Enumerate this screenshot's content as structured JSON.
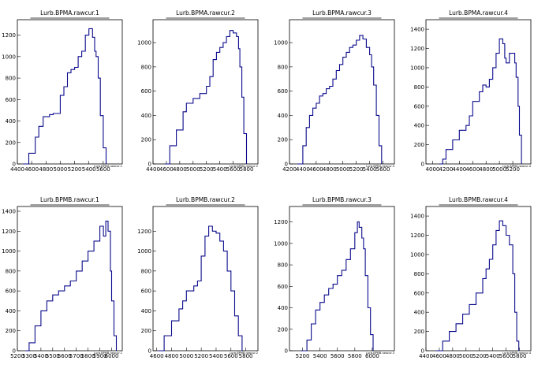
{
  "colors": {
    "histogram_line": "#0a0a8c",
    "frame": "#000000",
    "background": "#ffffff"
  },
  "chart_data": [
    {
      "type": "histogram",
      "title": "Lurb.BPMA.rawcur.1",
      "xlabel": "Lurb.BPMA.rawcur.1",
      "xlim": [
        4400,
        5800
      ],
      "ylim": [
        0,
        1300
      ],
      "xticks": [
        4400,
        4600,
        4800,
        5000,
        5200,
        5400,
        5600
      ],
      "xtick_labels": [
        "4400",
        "4600",
        "4800",
        "5000",
        "5200",
        "5400",
        "5600"
      ],
      "yticks": [
        0,
        200,
        400,
        600,
        800,
        1000,
        1200
      ],
      "ytick_labels": [
        "0",
        "200",
        "400",
        "600",
        "800",
        "1000",
        "1200"
      ],
      "points": [
        [
          4480,
          0
        ],
        [
          4560,
          100
        ],
        [
          4650,
          250
        ],
        [
          4700,
          350
        ],
        [
          4760,
          440
        ],
        [
          4850,
          460
        ],
        [
          4900,
          470
        ],
        [
          5000,
          640
        ],
        [
          5050,
          720
        ],
        [
          5100,
          850
        ],
        [
          5150,
          880
        ],
        [
          5200,
          900
        ],
        [
          5250,
          1000
        ],
        [
          5300,
          1050
        ],
        [
          5350,
          1200
        ],
        [
          5400,
          1260
        ],
        [
          5450,
          1180
        ],
        [
          5480,
          1050
        ],
        [
          5500,
          1000
        ],
        [
          5530,
          800
        ],
        [
          5560,
          450
        ],
        [
          5600,
          150
        ],
        [
          5640,
          0
        ]
      ]
    },
    {
      "type": "histogram",
      "title": "Lurb.BPMA.rawcur.2",
      "xlabel": "Lurb.BPMA.rawcur.2",
      "xlim": [
        4400,
        5900
      ],
      "ylim": [
        0,
        1150
      ],
      "xticks": [
        4400,
        4600,
        4800,
        5000,
        5200,
        5400,
        5600,
        5800
      ],
      "xtick_labels": [
        "4400",
        "4600",
        "4800",
        "5000",
        "5200",
        "5400",
        "5600",
        "5800"
      ],
      "yticks": [
        0,
        200,
        400,
        600,
        800,
        1000
      ],
      "ytick_labels": [
        "0",
        "200",
        "400",
        "600",
        "800",
        "1000"
      ],
      "points": [
        [
          4580,
          0
        ],
        [
          4650,
          150
        ],
        [
          4750,
          280
        ],
        [
          4850,
          430
        ],
        [
          4900,
          500
        ],
        [
          5000,
          540
        ],
        [
          5100,
          580
        ],
        [
          5200,
          640
        ],
        [
          5250,
          720
        ],
        [
          5300,
          860
        ],
        [
          5350,
          920
        ],
        [
          5400,
          960
        ],
        [
          5450,
          1000
        ],
        [
          5500,
          1050
        ],
        [
          5550,
          1100
        ],
        [
          5600,
          1080
        ],
        [
          5650,
          1050
        ],
        [
          5680,
          950
        ],
        [
          5700,
          800
        ],
        [
          5730,
          550
        ],
        [
          5760,
          250
        ],
        [
          5800,
          0
        ]
      ]
    },
    {
      "type": "histogram",
      "title": "Lurb.BPMA.rawcur.3",
      "xlabel": "Lurb.BPMA.rawcur.3",
      "xlim": [
        4200,
        5700
      ],
      "ylim": [
        0,
        1150
      ],
      "xticks": [
        4200,
        4400,
        4600,
        4800,
        5000,
        5200,
        5400,
        5600
      ],
      "xtick_labels": [
        "4200",
        "4400",
        "4600",
        "4800",
        "5000",
        "5200",
        "5400",
        "5600"
      ],
      "yticks": [
        0,
        200,
        400,
        600,
        800,
        1000
      ],
      "ytick_labels": [
        "0",
        "200",
        "400",
        "600",
        "800",
        "1000"
      ],
      "points": [
        [
          4320,
          0
        ],
        [
          4400,
          150
        ],
        [
          4450,
          300
        ],
        [
          4500,
          400
        ],
        [
          4550,
          460
        ],
        [
          4600,
          500
        ],
        [
          4650,
          560
        ],
        [
          4700,
          580
        ],
        [
          4750,
          620
        ],
        [
          4800,
          640
        ],
        [
          4850,
          700
        ],
        [
          4900,
          770
        ],
        [
          4950,
          820
        ],
        [
          5000,
          880
        ],
        [
          5050,
          920
        ],
        [
          5100,
          960
        ],
        [
          5150,
          980
        ],
        [
          5200,
          1020
        ],
        [
          5250,
          1060
        ],
        [
          5300,
          1030
        ],
        [
          5350,
          960
        ],
        [
          5400,
          900
        ],
        [
          5430,
          800
        ],
        [
          5460,
          650
        ],
        [
          5500,
          400
        ],
        [
          5540,
          150
        ],
        [
          5580,
          0
        ]
      ]
    },
    {
      "type": "histogram",
      "title": "Lurb.BPMA.rawcur.4",
      "xlabel": "Lurb.BPMA.rawcur.4",
      "xlim": [
        3900,
        5400
      ],
      "ylim": [
        0,
        1450
      ],
      "xticks": [
        4000,
        4200,
        4400,
        4600,
        4800,
        5000,
        5200
      ],
      "xtick_labels": [
        "4000",
        "4200",
        "4400",
        "4600",
        "4800",
        "5000",
        "5200"
      ],
      "yticks": [
        0,
        200,
        400,
        600,
        800,
        1000,
        1200,
        1400
      ],
      "ytick_labels": [
        "0",
        "200",
        "400",
        "600",
        "800",
        "1000",
        "1200",
        "1400"
      ],
      "points": [
        [
          4100,
          0
        ],
        [
          4150,
          50
        ],
        [
          4200,
          150
        ],
        [
          4300,
          250
        ],
        [
          4400,
          350
        ],
        [
          4500,
          400
        ],
        [
          4550,
          500
        ],
        [
          4600,
          650
        ],
        [
          4700,
          750
        ],
        [
          4750,
          820
        ],
        [
          4800,
          800
        ],
        [
          4850,
          880
        ],
        [
          4900,
          1000
        ],
        [
          4950,
          1150
        ],
        [
          5000,
          1300
        ],
        [
          5050,
          1250
        ],
        [
          5080,
          1100
        ],
        [
          5100,
          1050
        ],
        [
          5150,
          1150
        ],
        [
          5200,
          1150
        ],
        [
          5230,
          1050
        ],
        [
          5250,
          900
        ],
        [
          5280,
          600
        ],
        [
          5300,
          300
        ],
        [
          5330,
          0
        ]
      ]
    },
    {
      "type": "histogram",
      "title": "Lurb.BPMB.rawcur.1",
      "xlabel": "Lurb.BPMB.rawcur.1",
      "xlim": [
        5200,
        6050
      ],
      "ylim": [
        0,
        1400
      ],
      "xticks": [
        5200,
        5300,
        5400,
        5500,
        5600,
        5700,
        5800,
        5900,
        6000
      ],
      "xtick_labels": [
        "5200",
        "5300",
        "5400",
        "5500",
        "5600",
        "5700",
        "5800",
        "5900",
        "6000"
      ],
      "yticks": [
        0,
        200,
        400,
        600,
        800,
        1000,
        1200,
        1400
      ],
      "ytick_labels": [
        "0",
        "200",
        "400",
        "600",
        "800",
        "1000",
        "1200",
        "1400"
      ],
      "points": [
        [
          5270,
          0
        ],
        [
          5300,
          80
        ],
        [
          5350,
          250
        ],
        [
          5400,
          400
        ],
        [
          5450,
          500
        ],
        [
          5500,
          560
        ],
        [
          5550,
          600
        ],
        [
          5600,
          650
        ],
        [
          5650,
          700
        ],
        [
          5700,
          800
        ],
        [
          5750,
          900
        ],
        [
          5800,
          1000
        ],
        [
          5850,
          1100
        ],
        [
          5900,
          1250
        ],
        [
          5930,
          1150
        ],
        [
          5950,
          1300
        ],
        [
          5970,
          1200
        ],
        [
          5990,
          800
        ],
        [
          6000,
          500
        ],
        [
          6020,
          150
        ],
        [
          6040,
          0
        ]
      ]
    },
    {
      "type": "histogram",
      "title": "Lurb.BPMB.rawcur.2",
      "xlabel": "Lurb.BPMB.rawcur.2",
      "xlim": [
        4550,
        5900
      ],
      "ylim": [
        0,
        1400
      ],
      "xticks": [
        4600,
        4800,
        5000,
        5200,
        5400,
        5600,
        5800
      ],
      "xtick_labels": [
        "4600",
        "4800",
        "5000",
        "5200",
        "5400",
        "5600",
        "5800"
      ],
      "yticks": [
        0,
        200,
        400,
        600,
        800,
        1000,
        1200
      ],
      "ytick_labels": [
        "0",
        "200",
        "400",
        "600",
        "800",
        "1000",
        "1200"
      ],
      "points": [
        [
          4620,
          0
        ],
        [
          4700,
          150
        ],
        [
          4800,
          300
        ],
        [
          4900,
          420
        ],
        [
          4950,
          500
        ],
        [
          5000,
          600
        ],
        [
          5100,
          650
        ],
        [
          5150,
          700
        ],
        [
          5200,
          950
        ],
        [
          5250,
          1150
        ],
        [
          5300,
          1250
        ],
        [
          5350,
          1200
        ],
        [
          5400,
          1180
        ],
        [
          5450,
          1100
        ],
        [
          5500,
          1000
        ],
        [
          5550,
          800
        ],
        [
          5600,
          600
        ],
        [
          5650,
          350
        ],
        [
          5700,
          150
        ],
        [
          5750,
          0
        ]
      ]
    },
    {
      "type": "histogram",
      "title": "Lurb.BPMB.rawcur.3",
      "xlabel": "Lurb.BPMB.rawcur.3",
      "xlim": [
        5050,
        6200
      ],
      "ylim": [
        0,
        1300
      ],
      "xticks": [
        5200,
        5400,
        5600,
        5800,
        6000
      ],
      "xtick_labels": [
        "5200",
        "5400",
        "5600",
        "5800",
        "6000"
      ],
      "yticks": [
        0,
        200,
        400,
        600,
        800,
        1000,
        1200
      ],
      "ytick_labels": [
        "0",
        "200",
        "400",
        "600",
        "800",
        "1000",
        "1200"
      ],
      "points": [
        [
          5180,
          0
        ],
        [
          5250,
          100
        ],
        [
          5300,
          250
        ],
        [
          5350,
          380
        ],
        [
          5400,
          450
        ],
        [
          5450,
          520
        ],
        [
          5500,
          580
        ],
        [
          5550,
          620
        ],
        [
          5600,
          700
        ],
        [
          5650,
          750
        ],
        [
          5700,
          850
        ],
        [
          5750,
          950
        ],
        [
          5800,
          1100
        ],
        [
          5830,
          1200
        ],
        [
          5850,
          1150
        ],
        [
          5880,
          1050
        ],
        [
          5900,
          950
        ],
        [
          5920,
          700
        ],
        [
          5950,
          400
        ],
        [
          5980,
          150
        ],
        [
          6010,
          0
        ]
      ]
    },
    {
      "type": "histogram",
      "title": "Lurb.BPMB.rawcur.4",
      "xlabel": "Lurb.BPMB.rawcur.4",
      "xlim": [
        4400,
        5900
      ],
      "ylim": [
        0,
        1450
      ],
      "xticks": [
        4400,
        4600,
        4800,
        5000,
        5200,
        5400,
        5600,
        5800
      ],
      "xtick_labels": [
        "4400",
        "4600",
        "4800",
        "5000",
        "5200",
        "5400",
        "5600",
        "5800"
      ],
      "yticks": [
        0,
        200,
        400,
        600,
        800,
        1000,
        1200,
        1400
      ],
      "ytick_labels": [
        "0",
        "200",
        "400",
        "600",
        "800",
        "1000",
        "1200",
        "1400"
      ],
      "points": [
        [
          4550,
          0
        ],
        [
          4650,
          100
        ],
        [
          4750,
          200
        ],
        [
          4850,
          280
        ],
        [
          4950,
          380
        ],
        [
          5050,
          480
        ],
        [
          5150,
          600
        ],
        [
          5250,
          750
        ],
        [
          5300,
          850
        ],
        [
          5350,
          950
        ],
        [
          5400,
          1100
        ],
        [
          5450,
          1250
        ],
        [
          5500,
          1350
        ],
        [
          5550,
          1300
        ],
        [
          5600,
          1200
        ],
        [
          5650,
          1100
        ],
        [
          5700,
          800
        ],
        [
          5730,
          400
        ],
        [
          5760,
          100
        ],
        [
          5790,
          0
        ]
      ]
    }
  ]
}
